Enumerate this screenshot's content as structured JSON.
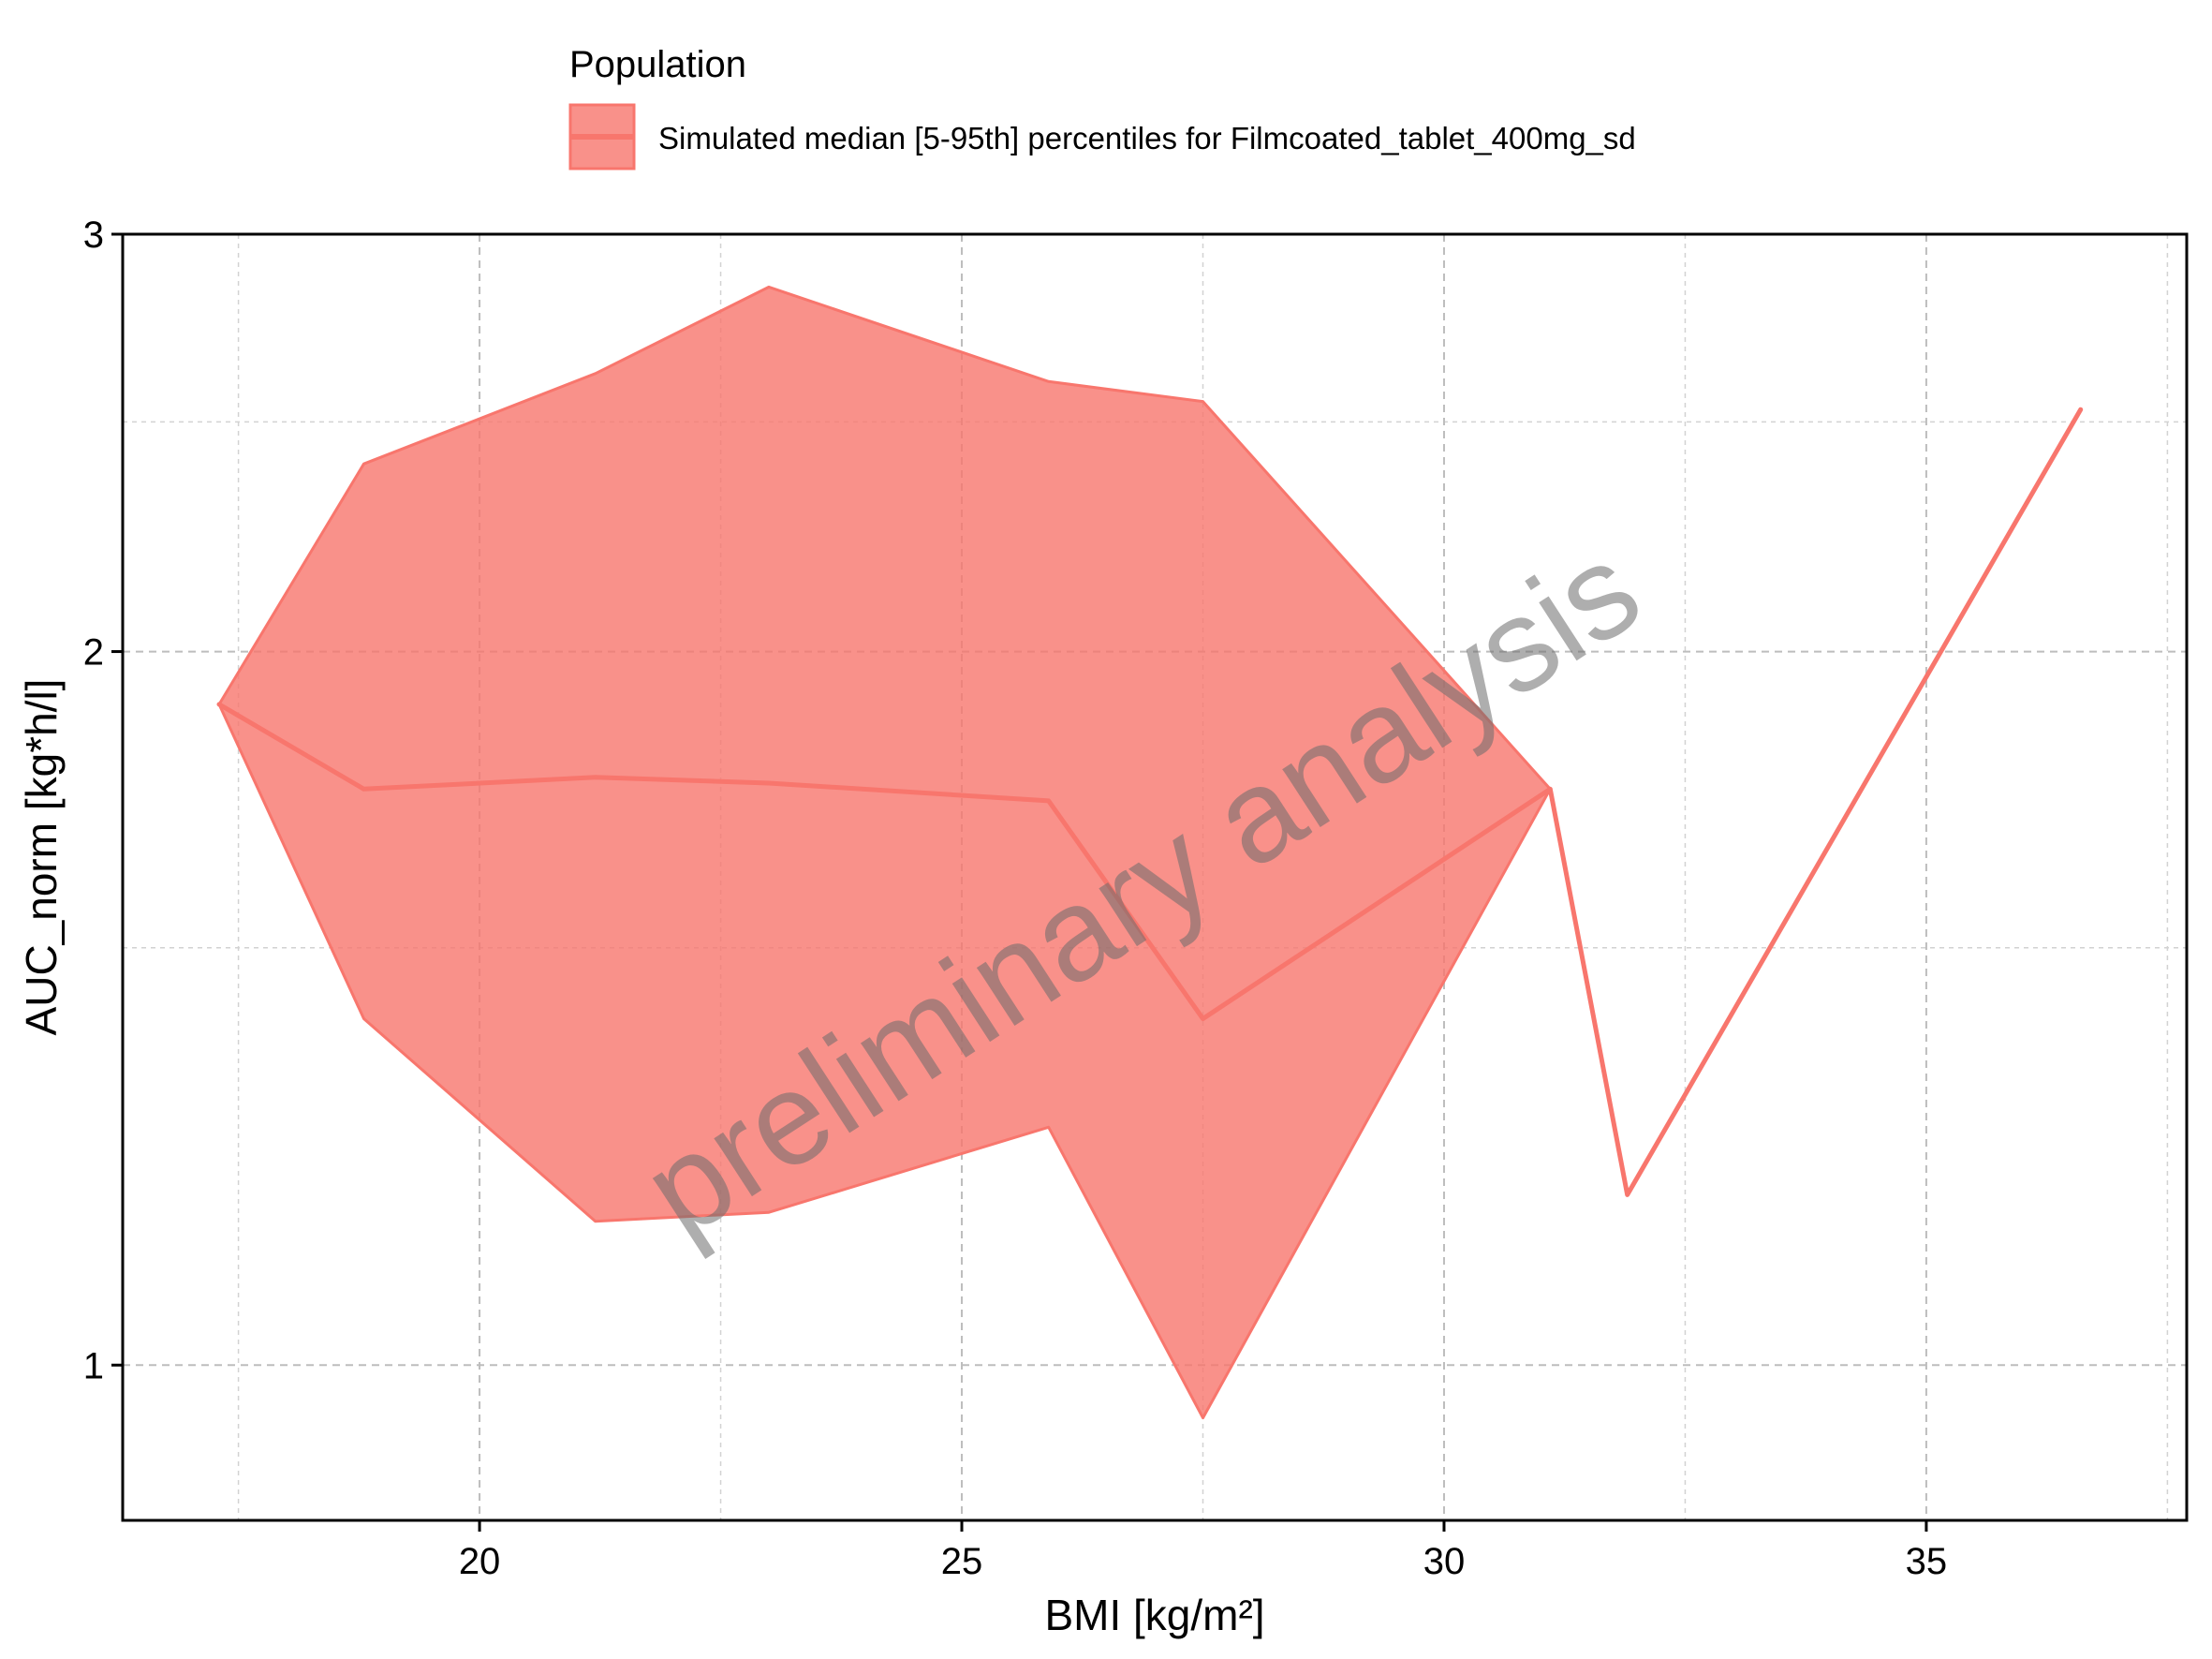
{
  "chart_data": {
    "type": "area",
    "xlabel": "BMI [kg/m²]",
    "ylabel": "AUC_norm [kg*h/l]",
    "xlim": [
      16.3,
      37.7
    ],
    "ylim": [
      0.86,
      3.0
    ],
    "y_scale": "log",
    "x_ticks": [
      20,
      25,
      30,
      35
    ],
    "x_tick_labels": [
      "20",
      "25",
      "30",
      "35"
    ],
    "x_minor_ticks": [
      17.5,
      22.5,
      27.5,
      32.5,
      37.5
    ],
    "y_ticks": [
      1,
      2,
      3
    ],
    "y_tick_labels": [
      "1",
      "2",
      "3"
    ],
    "y_minor_ticks": [
      1.5,
      2.5
    ],
    "grid": true,
    "legend_title": "Population",
    "legend_position": "top",
    "watermark": "preliminary analysis",
    "color": "#F8766D",
    "series": [
      {
        "name": "Simulated median [5-95th] percentiles for Filmcoated_tablet_400mg_sd",
        "x": [
          17.3,
          18.8,
          21.2,
          23.0,
          25.9,
          27.5,
          31.1,
          31.9,
          36.6
        ],
        "median": [
          1.9,
          1.75,
          1.77,
          1.76,
          1.73,
          1.4,
          1.75,
          1.18,
          2.53
        ],
        "lower": [
          1.9,
          1.4,
          1.15,
          1.16,
          1.26,
          0.95,
          1.75,
          1.18,
          2.53
        ],
        "upper": [
          1.9,
          2.4,
          2.62,
          2.85,
          2.6,
          2.55,
          1.75,
          1.18,
          2.53
        ]
      }
    ]
  }
}
